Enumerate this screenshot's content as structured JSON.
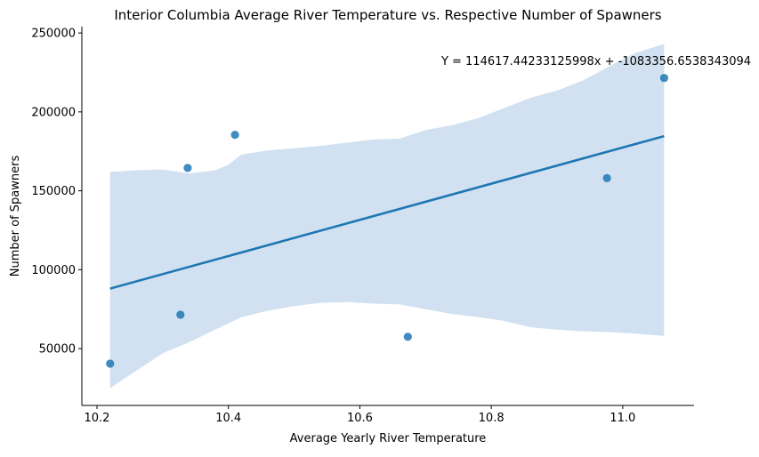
{
  "chart_data": {
    "type": "scatter",
    "title": "Interior Columbia Average River Temperature vs. Respective Number of Spawners",
    "xlabel": "Average Yearly River Temperature",
    "ylabel": "Number of Spawners",
    "xlim": [
      10.177,
      11.1085
    ],
    "ylim": [
      14000,
      254000
    ],
    "xticks": [
      10.2,
      10.4,
      10.6,
      10.8,
      11.0
    ],
    "xtick_labels": [
      "10.2",
      "10.4",
      "10.6",
      "10.8",
      "11.0"
    ],
    "yticks": [
      50000,
      100000,
      150000,
      200000,
      250000
    ],
    "ytick_labels": [
      "50000",
      "100000",
      "150000",
      "200000",
      "250000"
    ],
    "grid": false,
    "points": [
      {
        "x": 10.22,
        "y": 40500
      },
      {
        "x": 10.327,
        "y": 71500
      },
      {
        "x": 10.338,
        "y": 164500
      },
      {
        "x": 10.41,
        "y": 185500
      },
      {
        "x": 10.673,
        "y": 57500
      },
      {
        "x": 10.976,
        "y": 158000
      },
      {
        "x": 11.063,
        "y": 221500
      }
    ],
    "regression": {
      "slope": 114617.44233125998,
      "intercept": -1083356.6538343094,
      "x_range": [
        10.22,
        11.063
      ],
      "equation_label": "Y = 114617.44233125998x + -1083356.6538343094"
    },
    "confidence_band": {
      "x": [
        10.22,
        10.26,
        10.3,
        10.34,
        10.38,
        10.4,
        10.42,
        10.46,
        10.5,
        10.54,
        10.58,
        10.62,
        10.66,
        10.7,
        10.74,
        10.78,
        10.82,
        10.86,
        10.9,
        10.94,
        10.98,
        11.02,
        11.063
      ],
      "upper": [
        162000,
        163000,
        163500,
        161000,
        163000,
        166500,
        173000,
        175500,
        177000,
        178500,
        180500,
        182500,
        183000,
        188500,
        191500,
        196000,
        202500,
        209000,
        213500,
        220000,
        229000,
        237500,
        243000
      ],
      "lower": [
        25000,
        36000,
        47000,
        54000,
        62000,
        66000,
        70000,
        74000,
        77000,
        79000,
        79500,
        78500,
        78000,
        75000,
        72000,
        70000,
        67500,
        63500,
        62000,
        61000,
        60500,
        59500,
        58000
      ]
    },
    "colors": {
      "point": "#1f77b4",
      "line": "#1f77b4",
      "band": "#c9dcef",
      "axis": "#000000"
    }
  }
}
